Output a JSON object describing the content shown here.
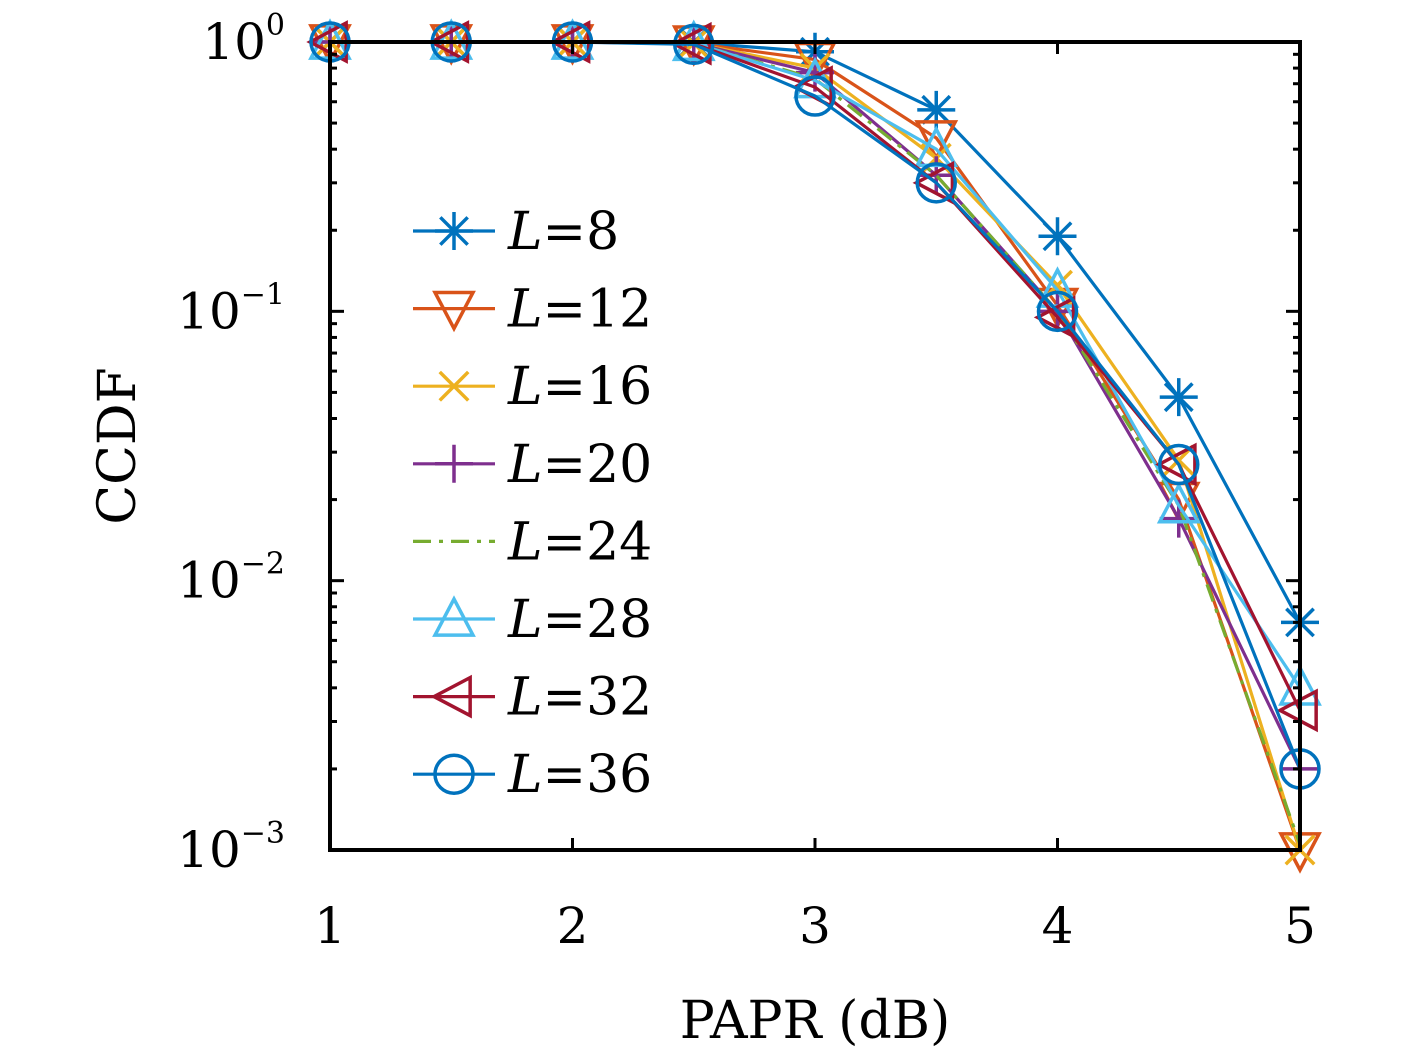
{
  "chart_data": {
    "type": "line",
    "xlabel": "PAPR (dB)",
    "ylabel": "CCDF",
    "xlim": [
      1,
      5
    ],
    "ylim": [
      0.001,
      1
    ],
    "yscale": "log",
    "grid": false,
    "legend_position": "center-left",
    "x_ticks": [
      "1",
      "2",
      "3",
      "4",
      "5"
    ],
    "y_ticks": [
      {
        "value": 1,
        "base": "10",
        "exp": "0"
      },
      {
        "value": 0.1,
        "base": "10",
        "exp": "−1"
      },
      {
        "value": 0.01,
        "base": "10",
        "exp": "−2"
      },
      {
        "value": 0.001,
        "base": "10",
        "exp": "−3"
      }
    ],
    "x": [
      1,
      1.5,
      2,
      2.5,
      3,
      3.5,
      4,
      4.5,
      5
    ],
    "series": [
      {
        "name": "L=8",
        "var": "L",
        "eq": "=8",
        "color": "#0072BD",
        "marker": "asterisk",
        "dash": "",
        "values": [
          1,
          1,
          1,
          0.995,
          0.92,
          0.56,
          0.19,
          0.048,
          0.007
        ]
      },
      {
        "name": "L=12",
        "var": "L",
        "eq": "=12",
        "color": "#D95319",
        "marker": "triangle-down",
        "dash": "",
        "values": [
          1,
          1,
          1,
          0.99,
          0.86,
          0.44,
          0.105,
          0.02,
          0.001
        ]
      },
      {
        "name": "L=16",
        "var": "L",
        "eq": "=16",
        "color": "#EDB120",
        "marker": "x",
        "dash": "",
        "values": [
          1,
          1,
          1,
          0.99,
          0.8,
          0.37,
          0.125,
          0.028,
          0.001
        ]
      },
      {
        "name": "L=20",
        "var": "L",
        "eq": "=20",
        "color": "#7E2F8E",
        "marker": "plus",
        "dash": "",
        "values": [
          1,
          1,
          1,
          0.99,
          0.77,
          0.32,
          0.1,
          0.017,
          0.002
        ]
      },
      {
        "name": "L=24",
        "var": "L",
        "eq": "=24",
        "color": "#77AC30",
        "marker": "none",
        "dash": "18,8,4,8",
        "values": [
          1,
          1,
          1,
          0.99,
          0.73,
          0.32,
          0.1,
          0.019,
          0.00105
        ]
      },
      {
        "name": "L=28",
        "var": "L",
        "eq": "=28",
        "color": "#4DBEEE",
        "marker": "triangle-up",
        "dash": "",
        "values": [
          1,
          1,
          1,
          0.99,
          0.72,
          0.4,
          0.12,
          0.019,
          0.004
        ]
      },
      {
        "name": "L=32",
        "var": "L",
        "eq": "=32",
        "color": "#A2142F",
        "marker": "triangle-left",
        "dash": "",
        "values": [
          1,
          1,
          1,
          0.985,
          0.68,
          0.3,
          0.095,
          0.027,
          0.0033
        ]
      },
      {
        "name": "L=36",
        "var": "L",
        "eq": "=36",
        "color": "#0072BD",
        "marker": "circle",
        "dash": "",
        "values": [
          1,
          1,
          1,
          0.98,
          0.63,
          0.3,
          0.1,
          0.027,
          0.002
        ]
      }
    ]
  }
}
